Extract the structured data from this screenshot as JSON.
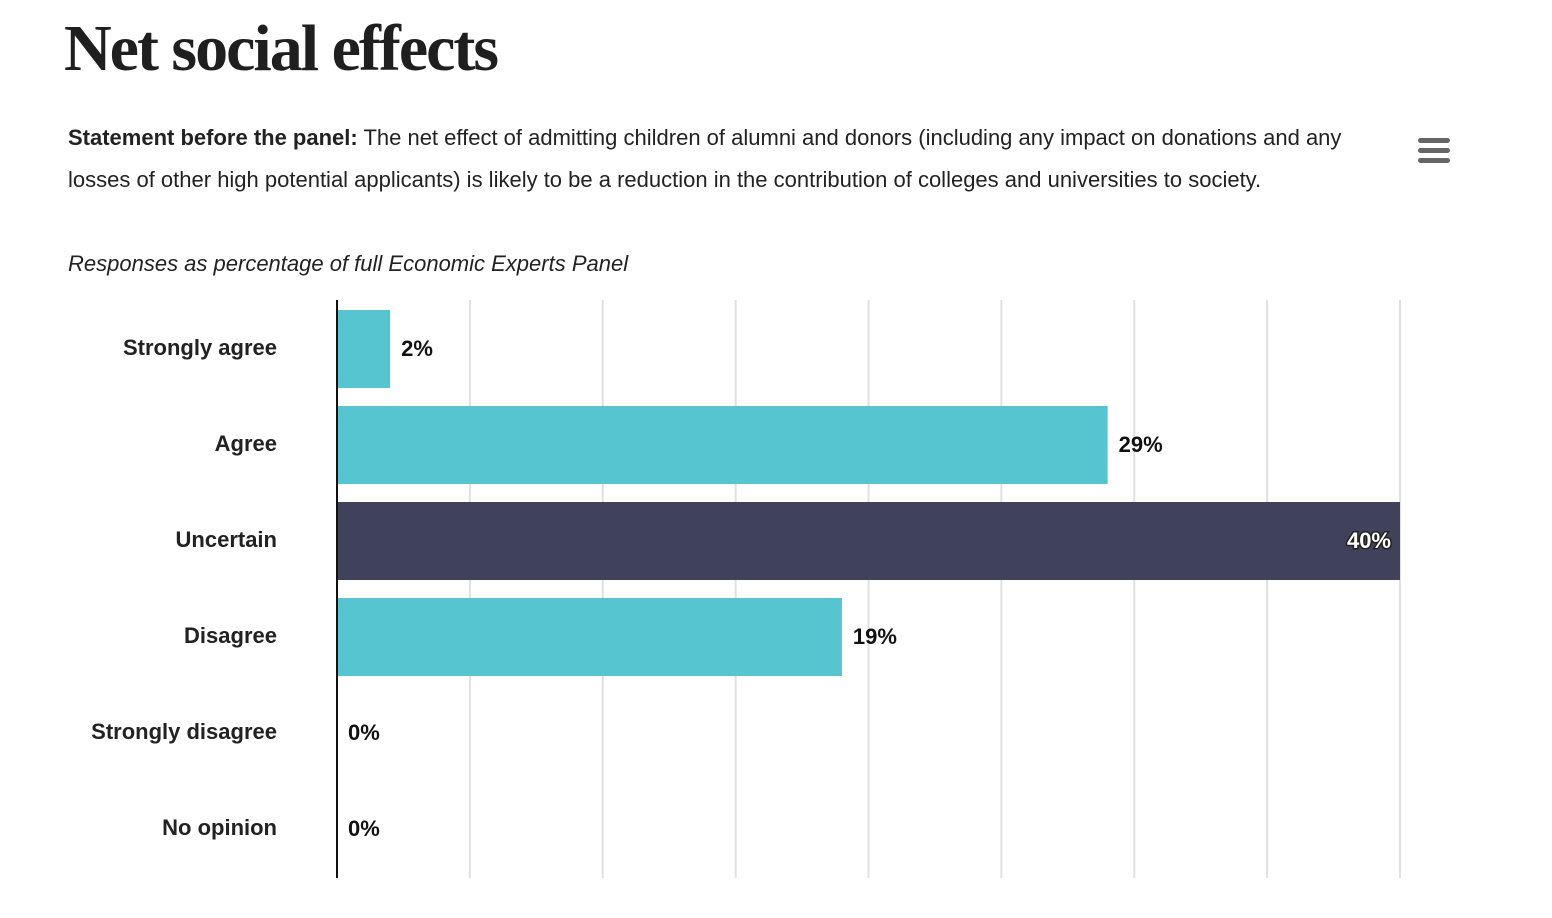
{
  "header": {
    "title": "Net social effects",
    "menu_icon": "hamburger-menu-icon"
  },
  "statement": {
    "lead": "Statement before the panel:",
    "text": "The net effect of admitting children of alumni and donors (including any impact on donations and any losses of other high potential applicants) is likely to be a reduction in the contribution of colleges and universities to society."
  },
  "subtitle": "Responses as percentage of full Economic Experts Panel",
  "colors": {
    "default_bar": "#56C5CF",
    "highlight_bar": "#40425B",
    "gridline": "#E0E0E0",
    "axis": "#111111"
  },
  "chart_data": {
    "type": "bar",
    "orientation": "horizontal",
    "categories": [
      "Strongly agree",
      "Agree",
      "Uncertain",
      "Disagree",
      "Strongly disagree",
      "No opinion"
    ],
    "values": [
      2,
      29,
      40,
      19,
      0,
      0
    ],
    "value_labels": [
      "2%",
      "29%",
      "40%",
      "19%",
      "0%",
      "0%"
    ],
    "highlight_category": "Uncertain",
    "xlim": [
      0,
      40
    ],
    "grid": true,
    "gridline_count": 8,
    "legend": "none",
    "xlabel": "",
    "ylabel": ""
  }
}
